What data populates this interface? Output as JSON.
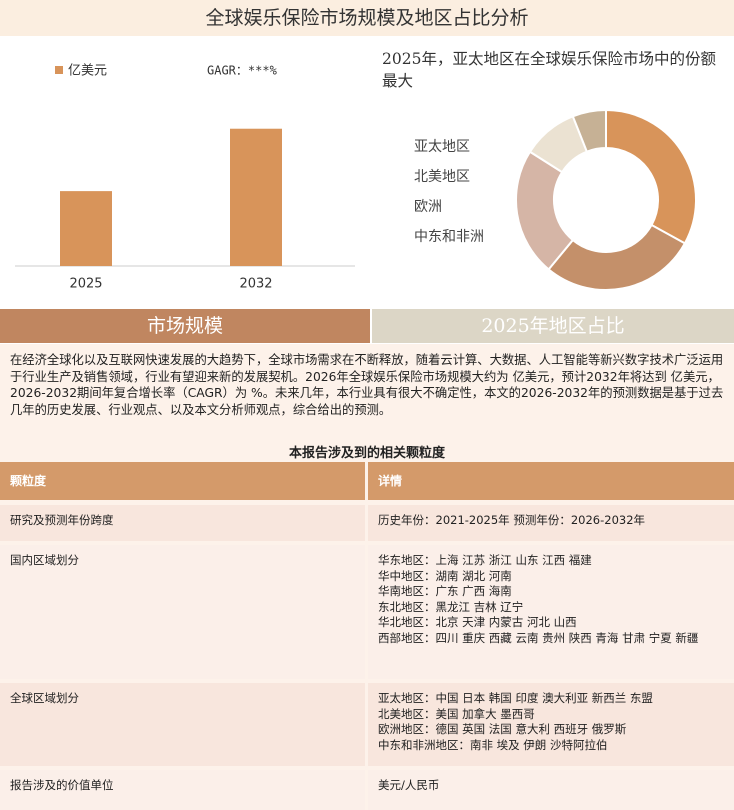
{
  "header": {
    "title": "全球娱乐保险市场规模及地区占比分析"
  },
  "chart_data": [
    {
      "type": "bar",
      "annotation": "GAGR：***%",
      "categories": [
        "2025",
        "2032"
      ],
      "series": [
        {
          "name": "亿美元",
          "color": "#d8945a",
          "values": [
            1.8,
            3.3
          ]
        }
      ],
      "ylim": [
        0,
        5
      ]
    },
    {
      "type": "pie",
      "title": "2025年，亚太地区在全球娱乐保险市场中的份额最大",
      "categories": [
        "亚太地区",
        "北美地区",
        "欧洲",
        "中东和非洲",
        null
      ],
      "values": [
        33,
        28,
        23,
        10,
        6
      ],
      "colors": [
        "#d8945a",
        "#c4906a",
        "#d5b5a6",
        "#ebe2d2",
        "#c6b195"
      ]
    }
  ],
  "sections": [
    "市场规模",
    "2025年地区占比"
  ],
  "intro": "在经济全球化以及互联网快速发展的大趋势下，全球市场需求在不断释放，随着云计算、大数据、人工智能等新兴数字技术广泛运用于行业生产及销售领域，行业有望迎来新的发展契机。2026年全球娱乐保险市场规模大约为 亿美元，预计2032年将达到 亿美元，2026-2032期间年复合增长率（CAGR）为 %。未来几年，本行业具有很大不确定性，本文的2026-2032年的预测数据是基于过去几年的历史发展、行业观点、以及本文分析师观点，综合给出的预测。",
  "table": {
    "caption": "本报告涉及到的相关颗粒度",
    "header": [
      "颗粒度",
      "详情"
    ],
    "rows": [
      [
        "研究及预测年份跨度",
        "历史年份：2021-2025年 预测年份：2026-2032年"
      ],
      [
        "国内区域划分",
        "华东地区：上海  江苏  浙江  山东  江西  福建\n华中地区：湖南  湖北  河南\n华南地区：广东  广西  海南\n东北地区：黑龙江  吉林  辽宁\n华北地区：北京  天津  内蒙古  河北  山西\n西部地区：四川  重庆  西藏  云南  贵州  陕西  青海  甘肃  宁夏  新疆"
      ],
      [
        "全球区域划分",
        "亚太地区：中国  日本  韩国  印度  澳大利亚  新西兰  东盟\n北美地区：美国  加拿大  墨西哥\n欧洲地区：德国  英国  法国  意大利  西班牙  俄罗斯\n中东和非洲地区：南非  埃及  伊朗  沙特阿拉伯"
      ],
      [
        "报告涉及的价值单位",
        "美元/人民币"
      ]
    ]
  }
}
